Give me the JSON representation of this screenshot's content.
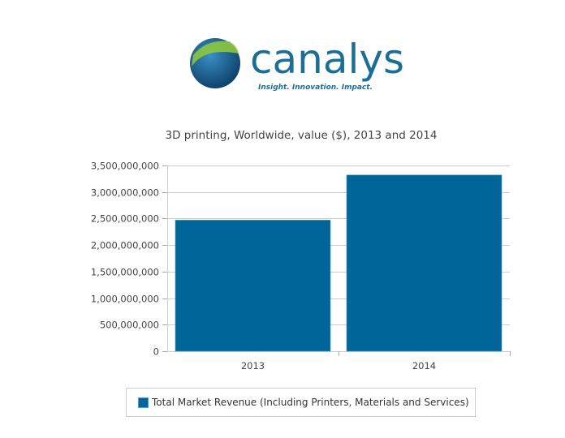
{
  "logo": {
    "name": "canalys",
    "tagline": "Insight. Innovation. Impact."
  },
  "colors": {
    "bar": "#006699",
    "grid": "#cccccc",
    "logo_text": "#1b6f96",
    "logo_green": "#8dc63f"
  },
  "chart_data": {
    "type": "bar",
    "title": "3D printing, Worldwide, value ($), 2013 and 2014",
    "categories": [
      "2013",
      "2014"
    ],
    "series": [
      {
        "name": "Total Market Revenue (Including Printers, Materials and Services)",
        "values": [
          2470000000,
          3320000000
        ]
      }
    ],
    "xlabel": "",
    "ylabel": "",
    "ylim": [
      0,
      3500000000
    ],
    "yticks": [
      0,
      500000000,
      1000000000,
      1500000000,
      2000000000,
      2500000000,
      3000000000,
      3500000000
    ],
    "ytick_labels": [
      "0",
      "500,000,000",
      "1,000,000,000",
      "1,500,000,000",
      "2,000,000,000",
      "2,500,000,000",
      "3,000,000,000",
      "3,500,000,000"
    ],
    "grid": true,
    "legend": "bottom"
  }
}
